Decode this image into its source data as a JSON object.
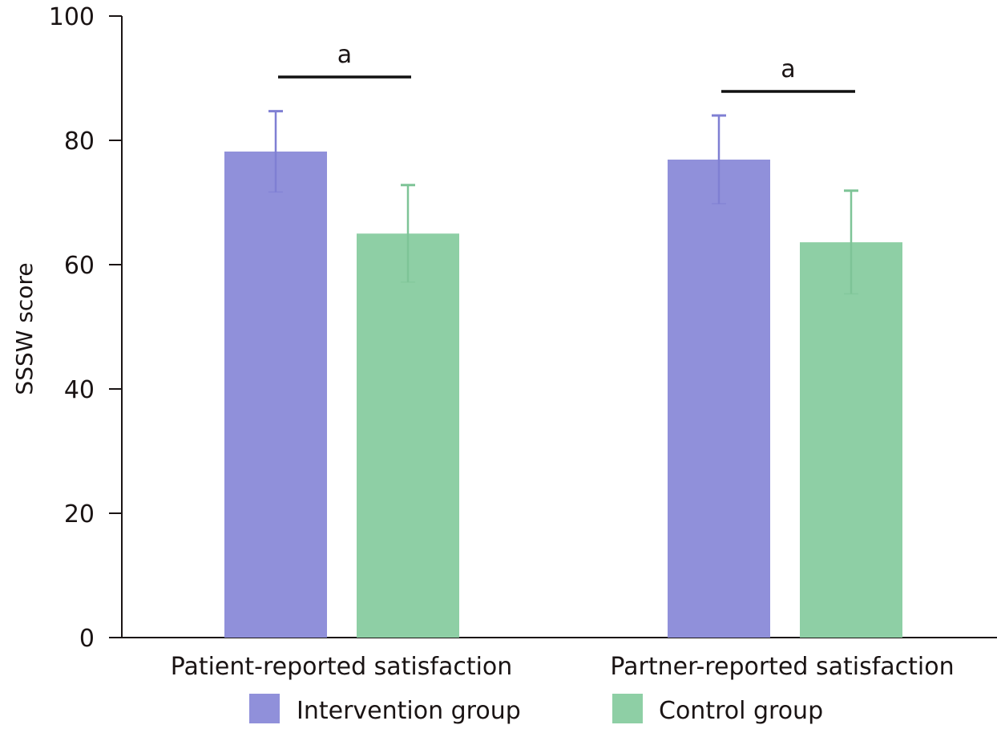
{
  "chart_data": {
    "type": "bar",
    "title": "",
    "xlabel": "",
    "ylabel": "SSSW score",
    "ylim": [
      0,
      100
    ],
    "yticks": [
      0,
      20,
      40,
      60,
      80,
      100
    ],
    "grid": false,
    "categories": [
      "Patient-reported satisfaction",
      "Partner-reported satisfaction"
    ],
    "series": [
      {
        "name": "Intervention group",
        "color": "#9090DA",
        "values": [
          78.2,
          76.9
        ],
        "error": [
          6.5,
          7.1
        ]
      },
      {
        "name": "Control group",
        "color": "#8ECFA5",
        "values": [
          65.0,
          63.6
        ],
        "error": [
          7.8,
          8.3
        ]
      }
    ],
    "annotations": [
      {
        "category": "Patient-reported satisfaction",
        "text": "a",
        "type": "significance-bracket"
      },
      {
        "category": "Partner-reported satisfaction",
        "text": "a",
        "type": "significance-bracket"
      }
    ],
    "legend": {
      "position": "bottom",
      "entries": [
        "Intervention group",
        "Control group"
      ]
    }
  }
}
